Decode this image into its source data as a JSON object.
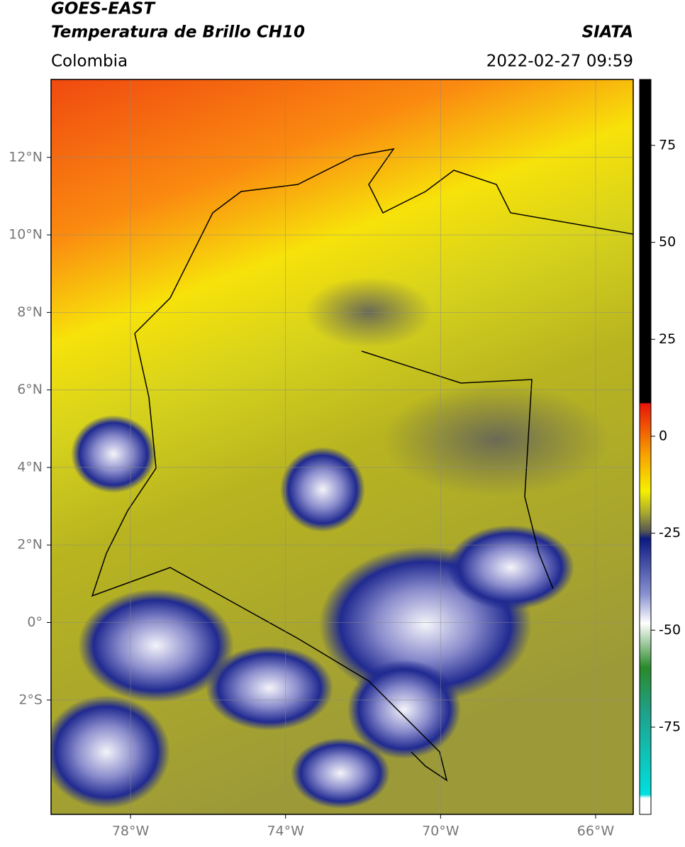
{
  "header": {
    "satellite": "GOES-EAST",
    "product": "Temperatura de Brillo CH10",
    "agency": "SIATA",
    "region": "Colombia",
    "datetime": "2022-02-27 09:59"
  },
  "map": {
    "xlim": [
      -80.05,
      -65.03
    ],
    "ylim": [
      -4.95,
      14.01
    ],
    "grid": true,
    "xticks": [
      {
        "value": -78,
        "label": "78°W"
      },
      {
        "value": -74,
        "label": "74°W"
      },
      {
        "value": -70,
        "label": "70°W"
      },
      {
        "value": -66,
        "label": "66°W"
      }
    ],
    "yticks": [
      {
        "value": 12,
        "label": "12°N"
      },
      {
        "value": 10,
        "label": "10°N"
      },
      {
        "value": 8,
        "label": "8°N"
      },
      {
        "value": 6,
        "label": "6°N"
      },
      {
        "value": 4,
        "label": "4°N"
      },
      {
        "value": 2,
        "label": "2°N"
      },
      {
        "value": 0,
        "label": "0°"
      },
      {
        "value": -2,
        "label": "2°S"
      }
    ]
  },
  "colorbar": {
    "lim": [
      -97.5,
      92
    ],
    "ticks": [
      75,
      50,
      25,
      0,
      -25,
      -50,
      -75
    ]
  }
}
